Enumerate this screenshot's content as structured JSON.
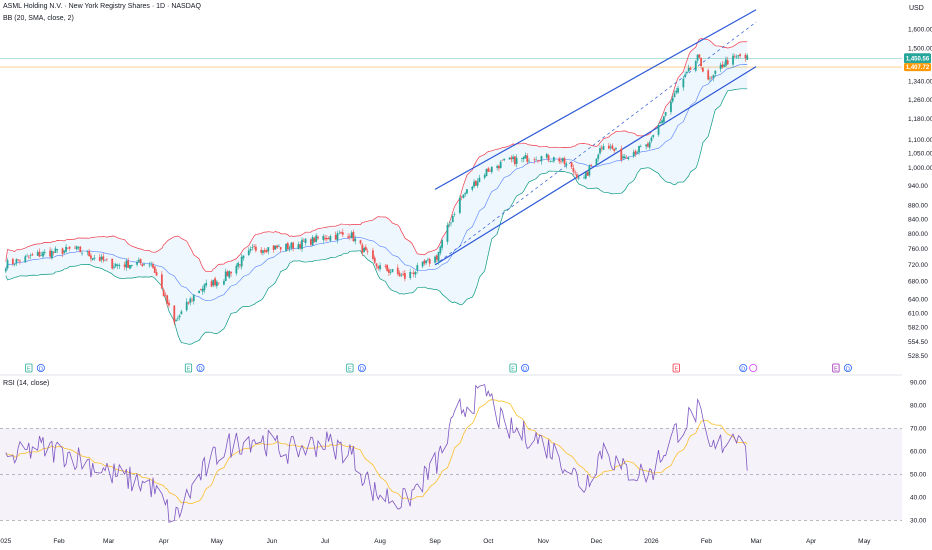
{
  "header": {
    "symbol_line": "ASML Holding N.V. · New York Registry Shares · 1D · NASDAQ",
    "bb_label": "BB (20, SMA, close, 2)",
    "rsi_label": "RSI (14, close)",
    "currency": "USD"
  },
  "price_badges": {
    "last": "1,450.56",
    "marker": "1,407.72"
  },
  "colors": {
    "up": "#26a69a",
    "down": "#ef5350",
    "bb_upper": "#f23645",
    "bb_lower": "#089981",
    "bb_basis": "#2962ff",
    "bb_fill": "#2196f3",
    "channel": "#2b58d6",
    "rsi": "#7e57c2",
    "rsi_ma": "#fbc02d",
    "rsi_band": "#7e57c2",
    "badge_last": "#26a69a",
    "badge_marker": "#ff9800"
  },
  "event_icons": [
    {
      "x_month": "2025-01",
      "letter": "E",
      "color": "#22ab94",
      "kind": "earnings"
    },
    {
      "x_month": "2025-01",
      "letter": "D",
      "color": "#2962ff",
      "kind": "dividend"
    },
    {
      "x_month": "2025-04",
      "letter": "E",
      "color": "#22ab94",
      "kind": "earnings"
    },
    {
      "x_month": "2025-04",
      "letter": "D",
      "color": "#2962ff",
      "kind": "dividend"
    },
    {
      "x_month": "2025-07",
      "letter": "E",
      "color": "#22ab94",
      "kind": "earnings"
    },
    {
      "x_month": "2025-07",
      "letter": "D",
      "color": "#2962ff",
      "kind": "dividend"
    },
    {
      "x_month": "2025-10",
      "letter": "E",
      "color": "#22ab94",
      "kind": "earnings"
    },
    {
      "x_month": "2025-10",
      "letter": "D",
      "color": "#2962ff",
      "kind": "dividend"
    },
    {
      "x_month": "2026-01",
      "letter": "E",
      "color": "#f23645",
      "kind": "earnings"
    },
    {
      "x_month": "2026-02",
      "letter": "D",
      "color": "#2962ff",
      "kind": "dividend"
    },
    {
      "x_month": "2026-02",
      "letter": "",
      "color": "#e040fb",
      "kind": "split"
    },
    {
      "x_month": "2026-04",
      "letter": "E",
      "color": "#9c27b0",
      "kind": "earnings"
    },
    {
      "x_month": "2026-04",
      "letter": "D",
      "color": "#2962ff",
      "kind": "dividend"
    }
  ],
  "chart_data": [
    {
      "type": "candlestick",
      "title": "ASML Holding N.V. · New York Registry Shares · 1D · NASDAQ",
      "x_axis_labels": [
        "2025",
        "Feb",
        "Mar",
        "Apr",
        "May",
        "Jun",
        "Jul",
        "Aug",
        "Sep",
        "Oct",
        "Nov",
        "Dec",
        "2026",
        "Feb",
        "Mar",
        "Apr",
        "May"
      ],
      "y_ticks": [
        528.5,
        554.5,
        582,
        610,
        640,
        680,
        720,
        760,
        800,
        840,
        880,
        940,
        1000,
        1050,
        1100,
        1180,
        1260,
        1340,
        1500,
        1600
      ],
      "y_scale": "log",
      "ylim": [
        525,
        1720
      ],
      "price_anchors": {
        "x": [
          "2025-01-01",
          "2025-01-20",
          "2025-02-10",
          "2025-03-03",
          "2025-03-25",
          "2025-04-07",
          "2025-04-20",
          "2025-05-05",
          "2025-05-22",
          "2025-06-10",
          "2025-06-30",
          "2025-07-15",
          "2025-07-29",
          "2025-08-15",
          "2025-09-02",
          "2025-09-15",
          "2025-09-30",
          "2025-10-10",
          "2025-10-28",
          "2025-11-10",
          "2025-11-24",
          "2025-12-05",
          "2025-12-15",
          "2025-12-31",
          "2026-01-14",
          "2026-01-27",
          "2026-02-03",
          "2026-02-11",
          "2026-02-20",
          "2026-02-24"
        ],
        "close": [
          720,
          745,
          760,
          720,
          725,
          590,
          660,
          690,
          760,
          765,
          790,
          800,
          720,
          690,
          740,
          900,
          990,
          1020,
          1040,
          1030,
          960,
          1090,
          1040,
          1080,
          1280,
          1450,
          1340,
          1430,
          1460,
          1450
        ]
      },
      "bollinger": {
        "period": 20,
        "stddev": 2,
        "basis": "SMA"
      },
      "channel_lines": [
        {
          "name": "upper",
          "start": [
            "2025-09-01",
            930
          ],
          "end": [
            "2026-03-01",
            1710
          ]
        },
        {
          "name": "median",
          "start": [
            "2025-09-01",
            720
          ],
          "end": [
            "2026-03-01",
            1640
          ]
        },
        {
          "name": "lower",
          "start": [
            "2025-09-01",
            720
          ],
          "end": [
            "2026-03-01",
            1410
          ]
        }
      ],
      "last_price": 1450.56,
      "marker_price": 1407.72
    },
    {
      "type": "line",
      "title": "RSI (14, close)",
      "y_ticks": [
        30,
        40,
        50,
        60,
        70,
        80,
        90
      ],
      "ylim": [
        28,
        91
      ],
      "overbought": 70,
      "middle": 50,
      "oversold": 30,
      "rsi_anchors": {
        "x": [
          "2025-01-01",
          "2025-01-20",
          "2025-02-10",
          "2025-03-03",
          "2025-03-25",
          "2025-04-07",
          "2025-04-20",
          "2025-05-05",
          "2025-05-22",
          "2025-06-10",
          "2025-06-30",
          "2025-07-15",
          "2025-07-29",
          "2025-08-15",
          "2025-09-02",
          "2025-09-15",
          "2025-09-30",
          "2025-10-10",
          "2025-10-28",
          "2025-11-10",
          "2025-11-24",
          "2025-12-05",
          "2025-12-15",
          "2025-12-31",
          "2026-01-14",
          "2026-01-27",
          "2026-02-03",
          "2026-02-11",
          "2026-02-20",
          "2026-02-24"
        ],
        "rsi": [
          55,
          62,
          58,
          50,
          45,
          30,
          48,
          62,
          66,
          60,
          64,
          60,
          42,
          38,
          55,
          78,
          86,
          70,
          66,
          58,
          45,
          62,
          52,
          50,
          68,
          78,
          60,
          64,
          70,
          56
        ]
      }
    }
  ]
}
